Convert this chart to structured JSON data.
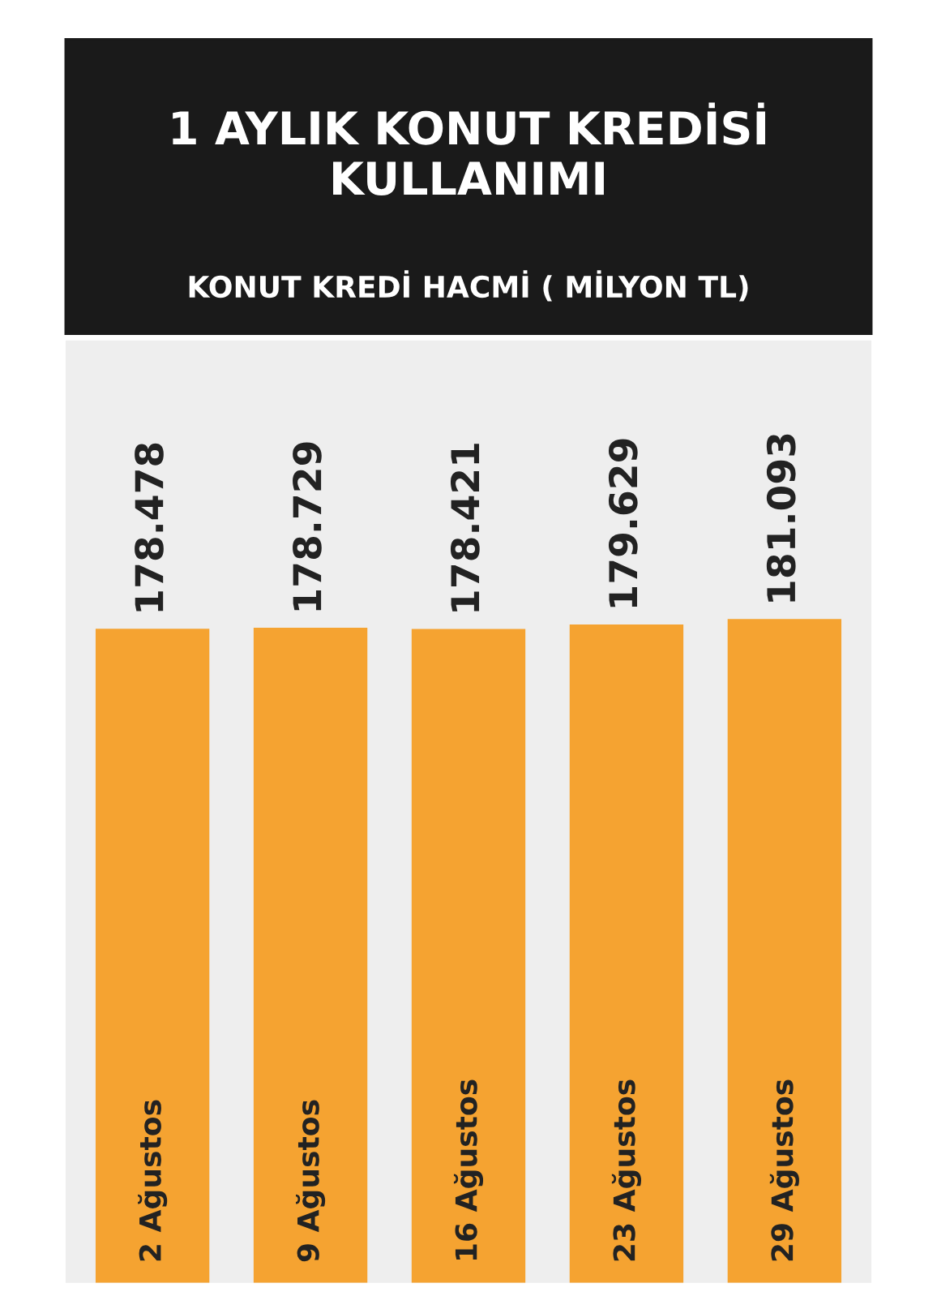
{
  "chart_data": {
    "type": "bar",
    "title": "1 AYLIK KONUT KREDİSİ\nKULLANIMI",
    "subtitle": "KONUT KREDİ HACMİ ( MİLYON TL)",
    "categories": [
      "2 Ağustos",
      "9 Ağustos",
      "16 Ağustos",
      "23 Ağustos",
      "29 Ağustos"
    ],
    "values": [
      178.478,
      178.729,
      178.421,
      179.629,
      181.093
    ],
    "value_labels": [
      "178.478",
      "178.729",
      "178.421",
      "179.629",
      "181.093"
    ],
    "color": "#f5a331"
  }
}
